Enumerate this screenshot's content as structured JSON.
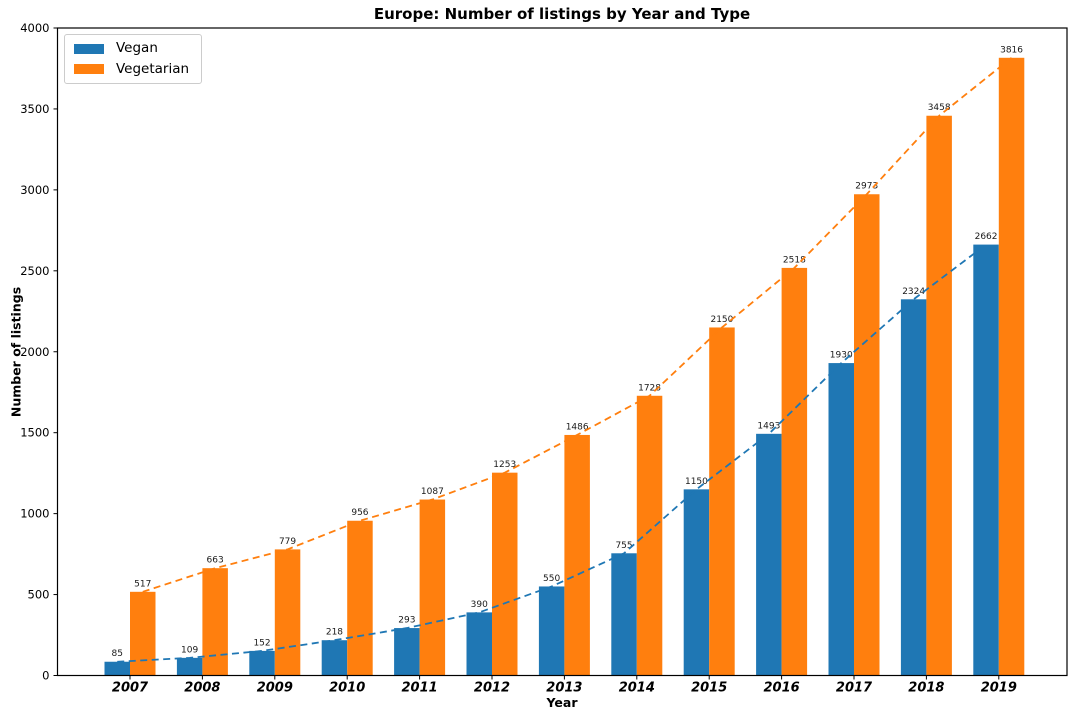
{
  "chart_data": {
    "type": "bar",
    "title": "Europe: Number of listings by Year and Type",
    "xlabel": "Year",
    "ylabel": "Number of listings",
    "categories": [
      "2007",
      "2008",
      "2009",
      "2010",
      "2011",
      "2012",
      "2013",
      "2014",
      "2015",
      "2016",
      "2017",
      "2018",
      "2019"
    ],
    "series": [
      {
        "name": "Vegan",
        "color": "#1f77b4",
        "values": [
          85,
          109,
          152,
          218,
          293,
          390,
          550,
          755,
          1150,
          1493,
          1930,
          2324,
          2662
        ]
      },
      {
        "name": "Vegetarian",
        "color": "#ff7f0e",
        "values": [
          517,
          663,
          779,
          956,
          1087,
          1253,
          1486,
          1728,
          2150,
          2518,
          2973,
          3458,
          3816
        ]
      }
    ],
    "ylim": [
      0,
      4000
    ],
    "yticks": [
      0,
      500,
      1000,
      1500,
      2000,
      2500,
      3000,
      3500,
      4000
    ],
    "grid": false,
    "legend_position": "upper left",
    "bar_value_labels": true,
    "trend_lines": "dashed line through bar tops for each series",
    "label_color": "#1a1a1a",
    "spine_color": "#000000"
  }
}
